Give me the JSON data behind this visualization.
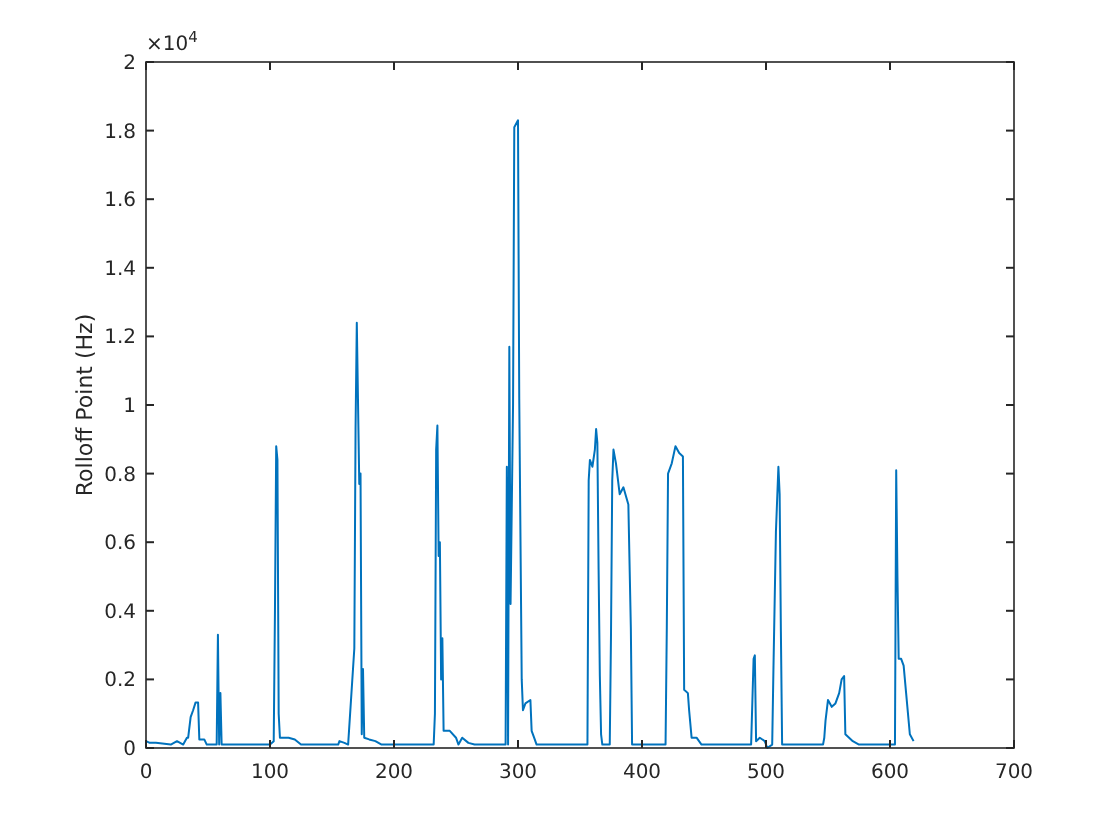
{
  "chart_data": {
    "type": "line",
    "ylabel": "Rolloff Point (Hz)",
    "annotations": [
      "×10$^{4}$"
    ],
    "xlim": [
      0,
      700
    ],
    "xticks": [
      0,
      100,
      200,
      300,
      400,
      500,
      600,
      700
    ],
    "ylim": [
      0,
      2
    ],
    "yticks": [
      0,
      0.2,
      0.4,
      0.6,
      0.8,
      1,
      1.2,
      1.4,
      1.6,
      1.8,
      2
    ],
    "marker": "none",
    "line_style": "solid",
    "series": [
      {
        "color": "#0072bd",
        "x": [
          0,
          3,
          8,
          20,
          25,
          30,
          33,
          34,
          36,
          38,
          40,
          42,
          43,
          47,
          49,
          57,
          58,
          59,
          60,
          61,
          100,
          103,
          104,
          105,
          106,
          107,
          108,
          115,
          120,
          125,
          155,
          156,
          160,
          163,
          168,
          169,
          170,
          172,
          173,
          174,
          175,
          176,
          180,
          185,
          190,
          232,
          233,
          234,
          235,
          236,
          237,
          238,
          239,
          240,
          241,
          245,
          250,
          252,
          255,
          260,
          265,
          290,
          291,
          292,
          293,
          294,
          296,
          297,
          300,
          301,
          303,
          304,
          306,
          310,
          311,
          313,
          315,
          356,
          357,
          358,
          360,
          362,
          363,
          364,
          365,
          366,
          367,
          368,
          374,
          375,
          376,
          377,
          379,
          382,
          385,
          389,
          391,
          392,
          419,
          420,
          421,
          424,
          427,
          430,
          433,
          434,
          437,
          438,
          440,
          444,
          448,
          488,
          490,
          491,
          492,
          495,
          499,
          501,
          505,
          506,
          508,
          510,
          511,
          512,
          513,
          546,
          547,
          548,
          550,
          553,
          556,
          559,
          561,
          563,
          564,
          570,
          575,
          604,
          605,
          606,
          607,
          609,
          611,
          613,
          616,
          619
        ],
        "values": [
          0.02,
          0.015,
          0.015,
          0.01,
          0.02,
          0.01,
          0.03,
          0.03,
          0.09,
          0.11,
          0.133,
          0.133,
          0.025,
          0.025,
          0.01,
          0.01,
          0.33,
          0.01,
          0.16,
          0.01,
          0.01,
          0.02,
          0.4,
          0.88,
          0.84,
          0.1,
          0.03,
          0.03,
          0.025,
          0.01,
          0.01,
          0.02,
          0.015,
          0.01,
          0.29,
          0.93,
          1.24,
          0.77,
          0.8,
          0.04,
          0.23,
          0.03,
          0.025,
          0.02,
          0.01,
          0.01,
          0.1,
          0.87,
          0.94,
          0.56,
          0.6,
          0.2,
          0.32,
          0.05,
          0.05,
          0.05,
          0.03,
          0.01,
          0.03,
          0.015,
          0.01,
          0.01,
          0.82,
          0.01,
          1.17,
          0.42,
          1,
          1.81,
          1.83,
          1.02,
          0.2,
          0.11,
          0.13,
          0.14,
          0.05,
          0.03,
          0.01,
          0.01,
          0.78,
          0.84,
          0.82,
          0.87,
          0.93,
          0.89,
          0.52,
          0.21,
          0.04,
          0.01,
          0.01,
          0.33,
          0.78,
          0.87,
          0.83,
          0.74,
          0.76,
          0.71,
          0.35,
          0.01,
          0.01,
          0.35,
          0.8,
          0.83,
          0.88,
          0.86,
          0.85,
          0.17,
          0.16,
          0.11,
          0.03,
          0.03,
          0.01,
          0.01,
          0.26,
          0.27,
          0.02,
          0.03,
          0.02,
          0,
          0.01,
          0.23,
          0.63,
          0.82,
          0.74,
          0.34,
          0.01,
          0.01,
          0.03,
          0.08,
          0.14,
          0.12,
          0.13,
          0.16,
          0.2,
          0.21,
          0.04,
          0.02,
          0.01,
          0.01,
          0.81,
          0.5,
          0.26,
          0.26,
          0.24,
          0.16,
          0.04,
          0.02
        ]
      }
    ]
  }
}
